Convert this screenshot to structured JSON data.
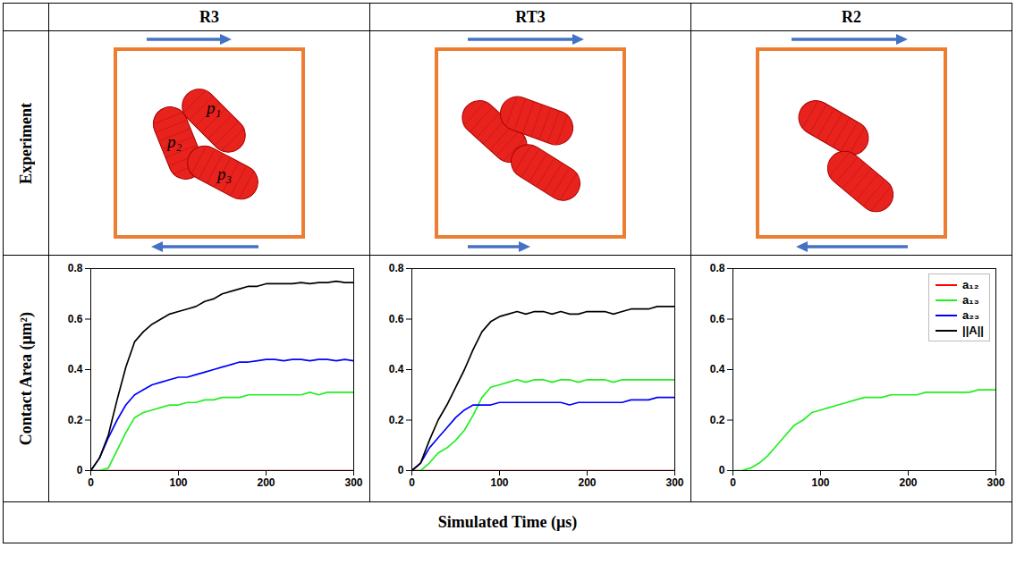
{
  "columns": [
    "R3",
    "RT3",
    "R2"
  ],
  "row_labels": [
    "Experiment",
    "Contact Area (μm²)"
  ],
  "footer": "Simulated Time (μs)",
  "experiment_labels": [
    [
      "p₁",
      "p₂",
      "p₃"
    ],
    [],
    []
  ],
  "chart_data": [
    {
      "type": "line",
      "x": [
        0,
        10,
        20,
        30,
        40,
        50,
        60,
        70,
        80,
        90,
        100,
        110,
        120,
        130,
        140,
        150,
        160,
        170,
        180,
        190,
        200,
        210,
        220,
        230,
        240,
        250,
        260,
        270,
        280,
        290,
        300
      ],
      "xlim": [
        0,
        300
      ],
      "xticks": [
        0,
        100,
        200,
        300
      ],
      "ylim": [
        0,
        0.8
      ],
      "yticks": [
        0,
        0.2,
        0.4,
        0.6,
        0.8
      ],
      "series": [
        {
          "name": "a₁₂",
          "color": "#ff0000",
          "values": [
            0,
            0,
            0,
            0,
            0,
            0,
            0,
            0,
            0,
            0,
            0,
            0,
            0,
            0,
            0,
            0,
            0,
            0,
            0,
            0,
            0,
            0,
            0,
            0,
            0,
            0,
            0,
            0,
            0,
            0,
            0
          ]
        },
        {
          "name": "a₁₃",
          "color": "#22ee22",
          "values": [
            0,
            0,
            0.01,
            0.08,
            0.15,
            0.21,
            0.23,
            0.24,
            0.25,
            0.26,
            0.26,
            0.27,
            0.27,
            0.28,
            0.28,
            0.29,
            0.29,
            0.29,
            0.3,
            0.3,
            0.3,
            0.3,
            0.3,
            0.3,
            0.3,
            0.31,
            0.3,
            0.31,
            0.31,
            0.31,
            0.31
          ]
        },
        {
          "name": "a₂₃",
          "color": "#0000ff",
          "values": [
            0,
            0.05,
            0.13,
            0.2,
            0.26,
            0.3,
            0.32,
            0.34,
            0.35,
            0.36,
            0.37,
            0.37,
            0.38,
            0.39,
            0.4,
            0.41,
            0.42,
            0.43,
            0.43,
            0.435,
            0.44,
            0.44,
            0.435,
            0.44,
            0.44,
            0.435,
            0.44,
            0.44,
            0.435,
            0.44,
            0.435
          ]
        },
        {
          "name": "||A||",
          "color": "#000000",
          "values": [
            0,
            0.05,
            0.14,
            0.28,
            0.41,
            0.51,
            0.55,
            0.58,
            0.6,
            0.62,
            0.63,
            0.64,
            0.65,
            0.67,
            0.68,
            0.7,
            0.71,
            0.72,
            0.73,
            0.73,
            0.74,
            0.74,
            0.74,
            0.74,
            0.745,
            0.74,
            0.745,
            0.745,
            0.75,
            0.745,
            0.745
          ]
        }
      ]
    },
    {
      "type": "line",
      "x": [
        0,
        10,
        20,
        30,
        40,
        50,
        60,
        70,
        80,
        90,
        100,
        110,
        120,
        130,
        140,
        150,
        160,
        170,
        180,
        190,
        200,
        210,
        220,
        230,
        240,
        250,
        260,
        270,
        280,
        290,
        300
      ],
      "xlim": [
        0,
        300
      ],
      "xticks": [
        0,
        100,
        200,
        300
      ],
      "ylim": [
        0,
        0.8
      ],
      "yticks": [
        0,
        0.2,
        0.4,
        0.6,
        0.8
      ],
      "series": [
        {
          "name": "a₁₂",
          "color": "#ff0000",
          "values": [
            0,
            0,
            0,
            0,
            0,
            0,
            0,
            0,
            0,
            0,
            0,
            0,
            0,
            0,
            0,
            0,
            0,
            0,
            0,
            0,
            0,
            0,
            0,
            0,
            0,
            0,
            0,
            0,
            0,
            0,
            0
          ]
        },
        {
          "name": "a₁₃",
          "color": "#22ee22",
          "values": [
            0,
            0,
            0.03,
            0.07,
            0.09,
            0.12,
            0.16,
            0.22,
            0.29,
            0.33,
            0.34,
            0.35,
            0.36,
            0.35,
            0.36,
            0.36,
            0.35,
            0.36,
            0.36,
            0.35,
            0.36,
            0.36,
            0.36,
            0.35,
            0.36,
            0.36,
            0.36,
            0.36,
            0.36,
            0.36,
            0.36
          ]
        },
        {
          "name": "a₂₃",
          "color": "#0000ff",
          "values": [
            0,
            0.03,
            0.09,
            0.13,
            0.17,
            0.21,
            0.24,
            0.26,
            0.26,
            0.26,
            0.27,
            0.27,
            0.27,
            0.27,
            0.27,
            0.27,
            0.27,
            0.27,
            0.26,
            0.27,
            0.27,
            0.27,
            0.27,
            0.27,
            0.27,
            0.28,
            0.28,
            0.28,
            0.29,
            0.29,
            0.29
          ]
        },
        {
          "name": "||A||",
          "color": "#000000",
          "values": [
            0,
            0.03,
            0.12,
            0.2,
            0.26,
            0.33,
            0.4,
            0.48,
            0.55,
            0.59,
            0.61,
            0.62,
            0.63,
            0.62,
            0.63,
            0.63,
            0.62,
            0.63,
            0.62,
            0.62,
            0.63,
            0.63,
            0.63,
            0.62,
            0.63,
            0.64,
            0.64,
            0.64,
            0.65,
            0.65,
            0.65
          ]
        }
      ]
    },
    {
      "type": "line",
      "legend": "top-right",
      "x": [
        0,
        10,
        20,
        30,
        40,
        50,
        60,
        70,
        80,
        90,
        100,
        110,
        120,
        130,
        140,
        150,
        160,
        170,
        180,
        190,
        200,
        210,
        220,
        230,
        240,
        250,
        260,
        270,
        280,
        290,
        300
      ],
      "xlim": [
        0,
        300
      ],
      "xticks": [
        0,
        100,
        200,
        300
      ],
      "ylim": [
        0,
        0.8
      ],
      "yticks": [
        0,
        0.2,
        0.4,
        0.6,
        0.8
      ],
      "series": [
        {
          "name": "a₁₂",
          "color": "#ff0000",
          "values": [
            null,
            null,
            null,
            null,
            null,
            null,
            null,
            null,
            null,
            null,
            null,
            null,
            null,
            null,
            null,
            null,
            null,
            null,
            null,
            null,
            null,
            null,
            null,
            null,
            null,
            null,
            null,
            null,
            null,
            null,
            null
          ]
        },
        {
          "name": "a₁₃",
          "color": "#22ee22",
          "values": [
            0,
            0,
            0.01,
            0.03,
            0.06,
            0.1,
            0.14,
            0.18,
            0.2,
            0.23,
            0.24,
            0.25,
            0.26,
            0.27,
            0.28,
            0.29,
            0.29,
            0.29,
            0.3,
            0.3,
            0.3,
            0.3,
            0.31,
            0.31,
            0.31,
            0.31,
            0.31,
            0.31,
            0.32,
            0.32,
            0.32
          ]
        },
        {
          "name": "a₂₃",
          "color": "#0000ff",
          "values": [
            null,
            null,
            null,
            null,
            null,
            null,
            null,
            null,
            null,
            null,
            null,
            null,
            null,
            null,
            null,
            null,
            null,
            null,
            null,
            null,
            null,
            null,
            null,
            null,
            null,
            null,
            null,
            null,
            null,
            null,
            null
          ]
        },
        {
          "name": "||A||",
          "color": "#000000",
          "values": [
            null,
            null,
            null,
            null,
            null,
            null,
            null,
            null,
            null,
            null,
            null,
            null,
            null,
            null,
            null,
            null,
            null,
            null,
            null,
            null,
            null,
            null,
            null,
            null,
            null,
            null,
            null,
            null,
            null,
            null,
            null
          ]
        }
      ]
    }
  ]
}
